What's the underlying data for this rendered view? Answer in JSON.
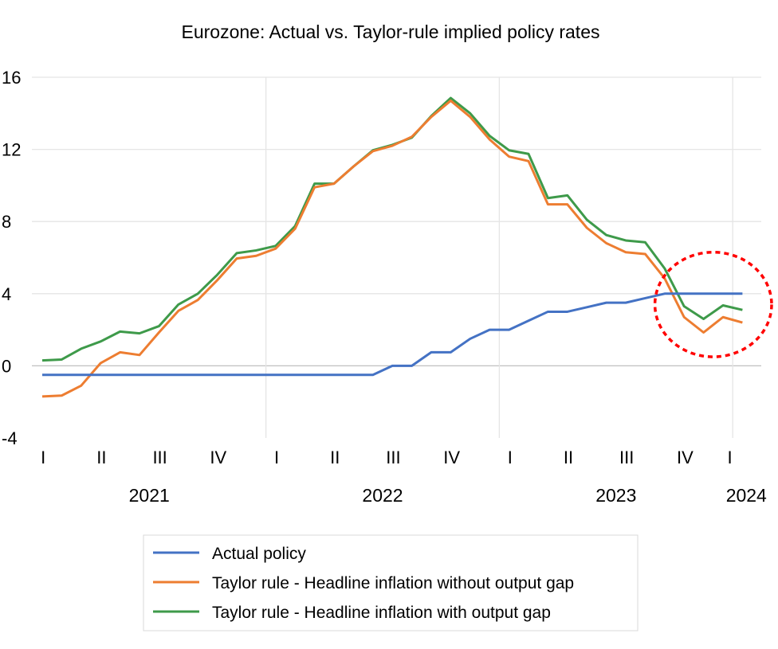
{
  "chart_data": {
    "type": "line",
    "title": "Eurozone: Actual vs. Taylor-rule implied policy rates",
    "xlabel": "",
    "ylabel": "",
    "ylim": [
      -4,
      16
    ],
    "yticks": [
      16,
      12,
      8,
      4,
      0,
      -4
    ],
    "ytick_labels": [
      "16",
      "12",
      "8",
      "4",
      "0",
      "-4"
    ],
    "x_frequency": "monthly",
    "x_start": "2021-01",
    "x_end": "2024-01",
    "quarter_labels": [
      {
        "label": "I",
        "month_index": 1
      },
      {
        "label": "II",
        "month_index": 4
      },
      {
        "label": "III",
        "month_index": 7
      },
      {
        "label": "IV",
        "month_index": 10
      },
      {
        "label": "I",
        "month_index": 13
      },
      {
        "label": "II",
        "month_index": 16
      },
      {
        "label": "III",
        "month_index": 19
      },
      {
        "label": "IV",
        "month_index": 22
      },
      {
        "label": "I",
        "month_index": 25
      },
      {
        "label": "II",
        "month_index": 28
      },
      {
        "label": "III",
        "month_index": 31
      },
      {
        "label": "IV",
        "month_index": 34
      },
      {
        "label": "I",
        "month_index": 36.3
      }
    ],
    "year_labels": [
      {
        "label": "2021",
        "month_index": 5.5
      },
      {
        "label": "2022",
        "month_index": 17.5
      },
      {
        "label": "2023",
        "month_index": 29.5
      },
      {
        "label": "2024",
        "month_index": 36.2
      }
    ],
    "grid": true,
    "legend_position": "bottom",
    "series": [
      {
        "name": "Actual policy",
        "color": "#4472C4",
        "values": [
          -0.5,
          -0.5,
          -0.5,
          -0.5,
          -0.5,
          -0.5,
          -0.5,
          -0.5,
          -0.5,
          -0.5,
          -0.5,
          -0.5,
          -0.5,
          -0.5,
          -0.5,
          -0.5,
          -0.5,
          -0.5,
          0,
          0,
          0.75,
          0.75,
          1.5,
          2.0,
          2.0,
          2.5,
          3.0,
          3.0,
          3.25,
          3.5,
          3.5,
          3.75,
          4.0,
          4.0,
          4.0,
          4.0,
          4.0
        ]
      },
      {
        "name": "Taylor rule - Headline inflation without output gap",
        "color": "#ED7D31",
        "values": [
          -1.7,
          -1.65,
          -1.1,
          0.15,
          0.75,
          0.6,
          1.85,
          3.05,
          3.65,
          4.75,
          5.95,
          6.1,
          6.5,
          7.6,
          9.9,
          10.1,
          11.05,
          11.9,
          12.2,
          12.7,
          13.8,
          14.7,
          13.8,
          12.55,
          11.6,
          11.35,
          8.95,
          8.95,
          7.65,
          6.8,
          6.3,
          6.2,
          4.85,
          2.7,
          1.85,
          2.7,
          2.4
        ]
      },
      {
        "name": "Taylor rule - Headline inflation with output gap",
        "color": "#3E9A4A",
        "values": [
          0.3,
          0.35,
          0.95,
          1.35,
          1.9,
          1.8,
          2.2,
          3.4,
          4.0,
          5.05,
          6.25,
          6.4,
          6.65,
          7.75,
          10.1,
          10.1,
          11.05,
          11.95,
          12.25,
          12.65,
          13.85,
          14.85,
          14.0,
          12.75,
          11.95,
          11.75,
          9.3,
          9.45,
          8.1,
          7.25,
          6.95,
          6.85,
          5.4,
          3.3,
          2.6,
          3.35,
          3.1
        ]
      }
    ],
    "annotations": [
      {
        "type": "dashed-ellipse",
        "color": "#FF0000",
        "month_range": [
          31.5,
          37.5
        ],
        "value_range": [
          0.5,
          6.3
        ]
      }
    ]
  }
}
